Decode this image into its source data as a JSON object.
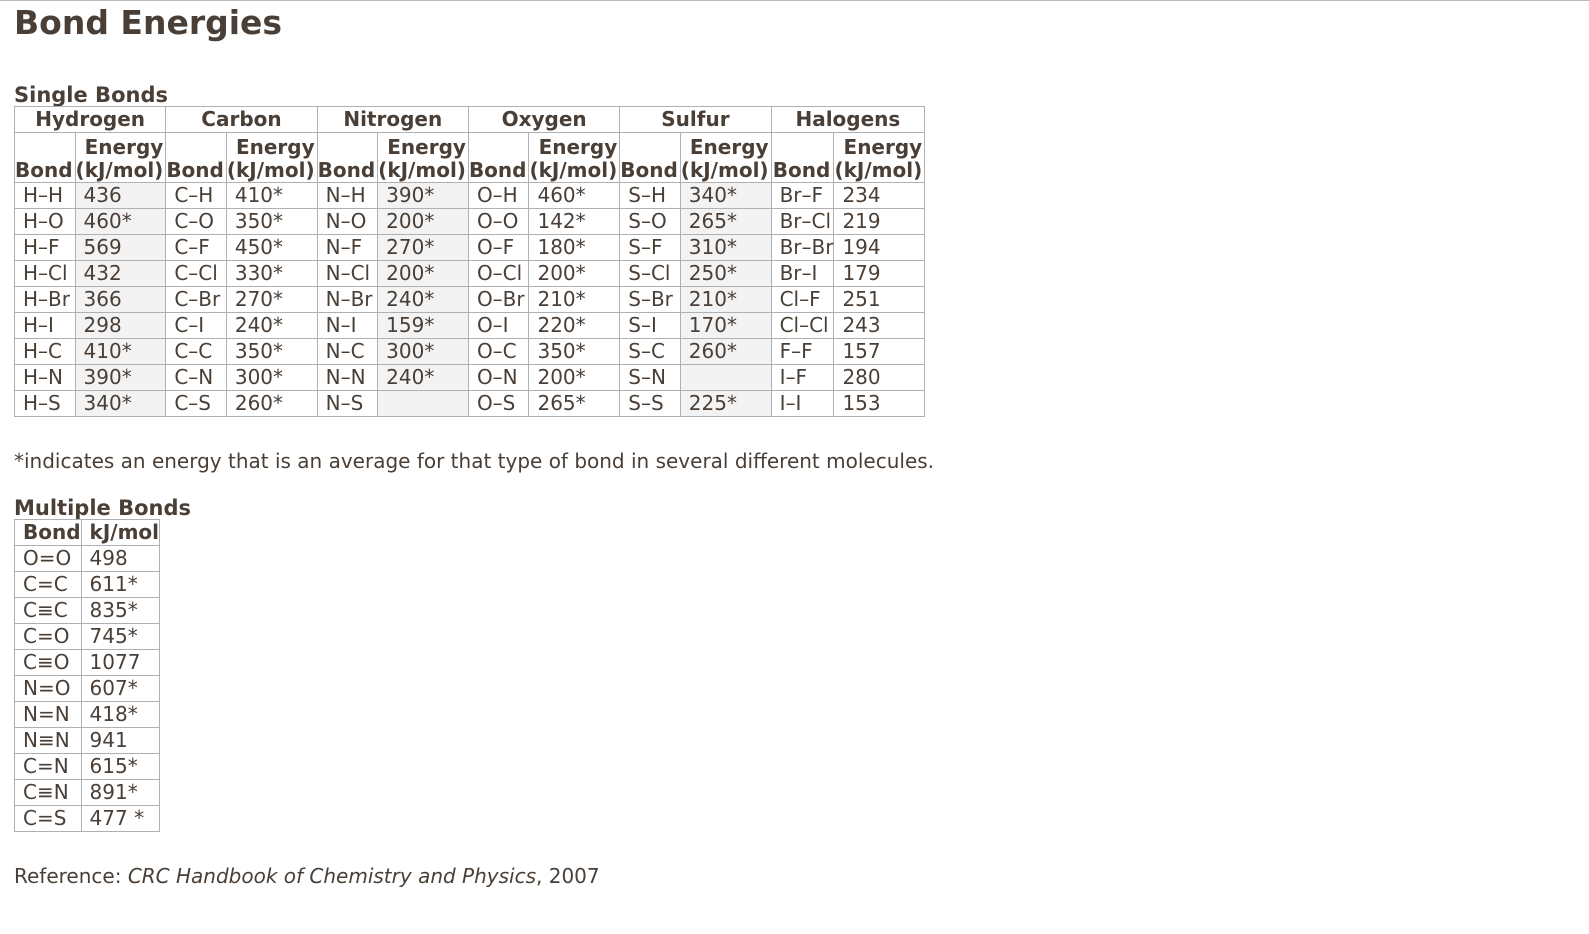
{
  "page_title": "Bond Energies",
  "single": {
    "caption": "Single Bonds",
    "groups": [
      "Hydrogen",
      "Carbon",
      "Nitrogen",
      "Oxygen",
      "Sulfur",
      "Halogens"
    ],
    "col_bond": "Bond",
    "col_energy_line1": "Energy",
    "col_energy_line2": "(kJ/mol)",
    "rows": [
      [
        [
          "H–H",
          "436"
        ],
        [
          "C–H",
          "410*"
        ],
        [
          "N–H",
          "390*"
        ],
        [
          "O–H",
          "460*"
        ],
        [
          "S–H",
          "340*"
        ],
        [
          "Br–F",
          "234"
        ]
      ],
      [
        [
          "H–O",
          "460*"
        ],
        [
          "C–O",
          "350*"
        ],
        [
          "N–O",
          "200*"
        ],
        [
          "O–O",
          "142*"
        ],
        [
          "S–O",
          "265*"
        ],
        [
          "Br–Cl",
          "219"
        ]
      ],
      [
        [
          "H–F",
          "569"
        ],
        [
          "C–F",
          "450*"
        ],
        [
          "N–F",
          "270*"
        ],
        [
          "O–F",
          "180*"
        ],
        [
          "S–F",
          "310*"
        ],
        [
          "Br–Br",
          "194"
        ]
      ],
      [
        [
          "H–Cl",
          "432"
        ],
        [
          "C–Cl",
          "330*"
        ],
        [
          "N–Cl",
          "200*"
        ],
        [
          "O–Cl",
          "200*"
        ],
        [
          "S–Cl",
          "250*"
        ],
        [
          "Br–I",
          "179"
        ]
      ],
      [
        [
          "H–Br",
          "366"
        ],
        [
          "C–Br",
          "270*"
        ],
        [
          "N–Br",
          "240*"
        ],
        [
          "O–Br",
          "210*"
        ],
        [
          "S–Br",
          "210*"
        ],
        [
          "Cl–F",
          "251"
        ]
      ],
      [
        [
          "H–I",
          "298"
        ],
        [
          "C–I",
          "240*"
        ],
        [
          "N–I",
          "159*"
        ],
        [
          "O–I",
          "220*"
        ],
        [
          "S–I",
          "170*"
        ],
        [
          "Cl–Cl",
          "243"
        ]
      ],
      [
        [
          "H–C",
          "410*"
        ],
        [
          "C–C",
          "350*"
        ],
        [
          "N–C",
          "300*"
        ],
        [
          "O–C",
          "350*"
        ],
        [
          "S–C",
          "260*"
        ],
        [
          "F–F",
          "157"
        ]
      ],
      [
        [
          "H–N",
          "390*"
        ],
        [
          "C–N",
          "300*"
        ],
        [
          "N–N",
          "240*"
        ],
        [
          "O–N",
          "200*"
        ],
        [
          "S–N",
          ""
        ],
        [
          "I–F",
          "280"
        ]
      ],
      [
        [
          "H–S",
          "340*"
        ],
        [
          "C–S",
          "260*"
        ],
        [
          "N–S",
          ""
        ],
        [
          "O–S",
          "265*"
        ],
        [
          "S–S",
          "225*"
        ],
        [
          "I–I",
          "153"
        ]
      ]
    ]
  },
  "note": "*indicates an energy that is an average for that type of bond in several different molecules.",
  "multiple": {
    "caption": "Multiple Bonds",
    "col_bond": "Bond",
    "col_energy": "kJ/mol",
    "rows": [
      [
        "O=O",
        "498"
      ],
      [
        "C=C",
        "611*"
      ],
      [
        "C≡C",
        "835*"
      ],
      [
        "C=O",
        "745*"
      ],
      [
        "C≡O",
        "1077"
      ],
      [
        "N=O",
        "607*"
      ],
      [
        "N=N",
        "418*"
      ],
      [
        "N≡N",
        "941"
      ],
      [
        "C=N",
        "615*"
      ],
      [
        "C≡N",
        "891*"
      ],
      [
        "C=S",
        "477 *"
      ]
    ]
  },
  "reference": {
    "prefix": "Reference: ",
    "title": "CRC Handbook of Chemistry and Physics",
    "suffix": ", 2007"
  }
}
